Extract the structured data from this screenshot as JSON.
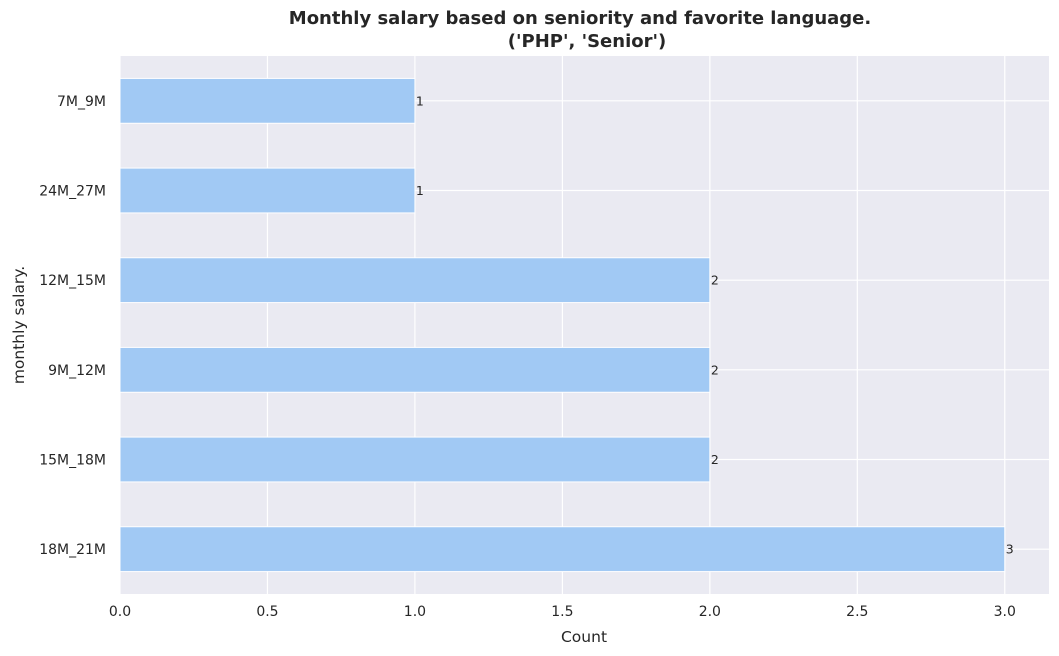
{
  "chart_data": {
    "type": "bar",
    "orientation": "horizontal",
    "title": "Monthly salary based on seniority and favorite language.",
    "subtitle": "('PHP', 'Senior')",
    "xlabel": "Count",
    "ylabel": "monthly salary.",
    "categories": [
      "7M_9M",
      "24M_27M",
      "12M_15M",
      "9M_12M",
      "15M_18M",
      "18M_21M"
    ],
    "values": [
      1,
      1,
      2,
      2,
      2,
      3
    ],
    "data_labels": [
      "1",
      "1",
      "2",
      "2",
      "2",
      "3"
    ],
    "xlim": [
      0,
      3.15
    ],
    "xticks": [
      "0.0",
      "0.5",
      "1.0",
      "1.5",
      "2.0",
      "2.5",
      "3.0"
    ],
    "grid": true,
    "bar_color": "#a1c9f4",
    "background_color": "#eaeaf2",
    "grid_color": "#ffffff"
  }
}
